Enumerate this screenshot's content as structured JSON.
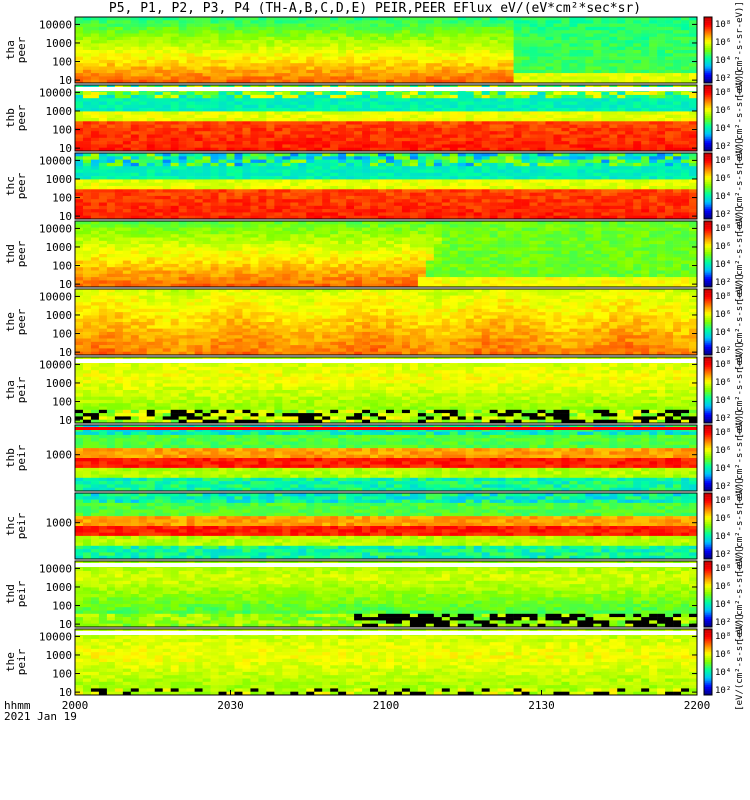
{
  "title": "P5, P1, P2, P3, P4 (TH-A,B,C,D,E) PEIR,PEER EFlux eV/(eV*cm²*sec*sr)",
  "time_axis": {
    "ticks": [
      "2000",
      "2030",
      "2100",
      "2130",
      "2200"
    ],
    "label_line1": "hhmm",
    "label_line2": "2021 Jan 19"
  },
  "colorbar_side_label": "[eV/(cm²-s-sr-eV)]",
  "chart_data": {
    "type": "heatmap",
    "title": "P5, P1, P2, P3, P4 (TH-A,B,C,D,E) PEIR,PEER EFlux eV/(eV*cm²*sec*sr)",
    "x_range_hhmm": [
      "2000",
      "2200"
    ],
    "xlabel": "hhmm 2021 Jan 19",
    "y_scale": "log",
    "z_scale": "log",
    "colormap": [
      "#000080",
      "#0000ff",
      "#00c0ff",
      "#00ffa0",
      "#80ff00",
      "#ffff00",
      "#ff8000",
      "#ff0000",
      "#c00000"
    ],
    "panels": [
      {
        "probe": "tha",
        "species": "peer",
        "ylabel": "tha\npeer",
        "yticks": [
          "10",
          "100",
          "1000",
          "10000"
        ],
        "cbar_ticks": [
          "10²",
          "10⁴",
          "10⁶",
          "10⁸"
        ],
        "cbar_label": "[eV/(cm²-s-sr-eV)]"
      },
      {
        "probe": "thb",
        "species": "peer",
        "ylabel": "thb\npeer",
        "yticks": [
          "10",
          "100",
          "1000",
          "10000"
        ],
        "cbar_ticks": [
          "10²",
          "10⁴",
          "10⁶",
          "10⁸"
        ],
        "cbar_label": "[eV/(cm²-s-sr-eV)]"
      },
      {
        "probe": "thc",
        "species": "peer",
        "ylabel": "thc\npeer",
        "yticks": [
          "10",
          "100",
          "1000",
          "10000"
        ],
        "cbar_ticks": [
          "10²",
          "10⁴",
          "10⁶",
          "10⁸"
        ],
        "cbar_label": "[eV/(cm²-s-sr-eV)]"
      },
      {
        "probe": "thd",
        "species": "peer",
        "ylabel": "thd\npeer",
        "yticks": [
          "10",
          "100",
          "1000",
          "10000"
        ],
        "cbar_ticks": [
          "10²",
          "10⁴",
          "10⁶",
          "10⁸"
        ],
        "cbar_label": "[eV/(cm²-s-sr-eV)]"
      },
      {
        "probe": "the",
        "species": "peer",
        "ylabel": "the\npeer",
        "yticks": [
          "10",
          "100",
          "1000",
          "10000"
        ],
        "cbar_ticks": [
          "10²",
          "10⁴",
          "10⁶",
          "10⁸"
        ],
        "cbar_label": "[eV/(cm²-s-sr-eV)]"
      },
      {
        "probe": "tha",
        "species": "peir",
        "ylabel": "tha\npeir",
        "yticks": [
          "10",
          "100",
          "1000",
          "10000"
        ],
        "cbar_ticks": [
          "10²",
          "10⁴",
          "10⁶",
          "10⁸"
        ],
        "cbar_label": "[eV/(cm²-s-sr-eV)]"
      },
      {
        "probe": "thb",
        "species": "peir",
        "ylabel": "thb\npeir",
        "yticks": [
          "1000"
        ],
        "cbar_ticks": [
          "10²",
          "10⁴",
          "10⁶",
          "10⁸"
        ],
        "cbar_label": "[eV/(cm²-s-sr-eV)]"
      },
      {
        "probe": "thc",
        "species": "peir",
        "ylabel": "thc\npeir",
        "yticks": [
          "1000"
        ],
        "cbar_ticks": [
          "10²",
          "10⁴",
          "10⁶",
          "10⁸"
        ],
        "cbar_label": "[eV/(cm²-s-sr-eV)]"
      },
      {
        "probe": "thd",
        "species": "peir",
        "ylabel": "thd\npeir",
        "yticks": [
          "10",
          "100",
          "1000",
          "10000"
        ],
        "cbar_ticks": [
          "10²",
          "10⁴",
          "10⁶",
          "10⁸"
        ],
        "cbar_label": "[eV/(cm²-s-sr-eV)]"
      },
      {
        "probe": "the",
        "species": "peir",
        "ylabel": "the\npeir",
        "yticks": [
          "10",
          "100",
          "1000",
          "10000"
        ],
        "cbar_ticks": [
          "10²",
          "10⁴",
          "10⁶",
          "10⁸"
        ],
        "cbar_label": "[eV/(cm²-s-sr-eV)]"
      }
    ]
  }
}
